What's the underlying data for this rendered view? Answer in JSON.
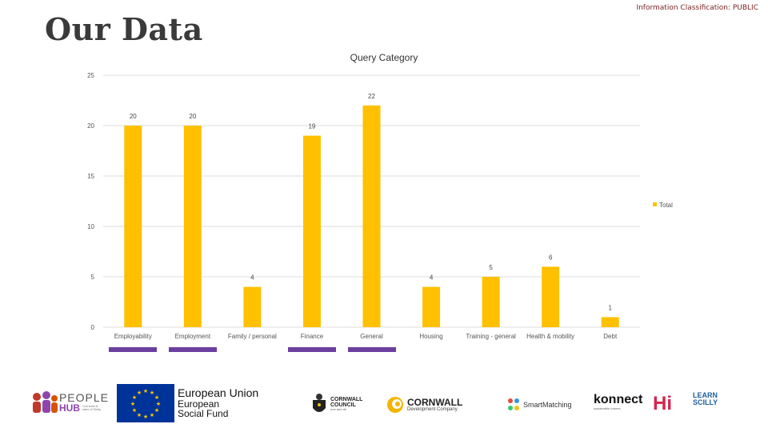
{
  "header": {
    "classification": "Information Classification: PUBLIC",
    "title": "Our Data"
  },
  "chart_data": {
    "type": "bar",
    "title": "Query Category",
    "categories": [
      "Employability",
      "Employment",
      "Family / personal",
      "Finance",
      "General",
      "Housing",
      "Training - general",
      "Health & mobility",
      "Debt"
    ],
    "series": [
      {
        "name": "Total",
        "values": [
          20,
          20,
          4,
          19,
          22,
          4,
          5,
          6,
          1
        ]
      }
    ],
    "data_labels": true,
    "ylim": [
      0,
      25
    ],
    "yticks": [
      0,
      5,
      10,
      15,
      20,
      25
    ],
    "grid": true,
    "legend": "right",
    "bar_color": "#FFC000",
    "highlighted_categories": [
      "Employability",
      "Employment",
      "Finance",
      "General"
    ],
    "highlight_color": "#6B3FA0"
  },
  "logos": {
    "people_hub": {
      "line1": "PEOPLE",
      "line2": "HUB",
      "tag": "Cornwall & Isles of Scilly"
    },
    "eu": {
      "line1": "European Union",
      "line2": "European",
      "line3": "Social Fund"
    },
    "cornwall_council": {
      "line1": "CORNWALL",
      "line2": "COUNCIL",
      "tag": "one and all"
    },
    "cdc": {
      "line1": "CORNWALL",
      "line2": "Development Company"
    },
    "smartmatching": {
      "name": "SmartMatching"
    },
    "konnect": {
      "name": "konnect",
      "tag": "sustainable futures"
    },
    "hi": {
      "name": "Hi"
    },
    "learn_scilly": {
      "line1": "LEARN",
      "line2": "SCILLY"
    }
  }
}
